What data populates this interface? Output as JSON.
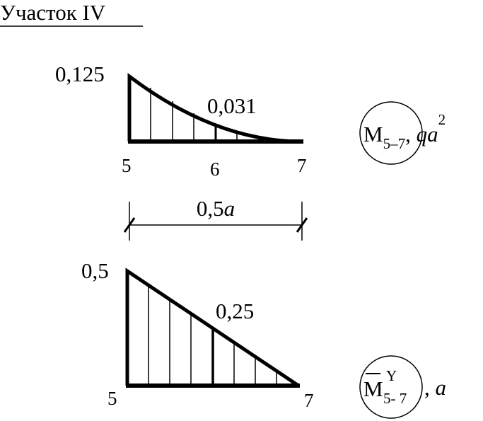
{
  "header": {
    "title": "Участок IV"
  },
  "diagrams": [
    {
      "values": [
        "0,125",
        "0,031"
      ],
      "nodes": [
        "5",
        "6",
        "7"
      ],
      "label": {
        "symbol": "M",
        "subscript": "5–7",
        "separator": ", ",
        "units": "qa",
        "units_power": "2"
      }
    },
    {
      "values": [
        "0,5",
        "0,25"
      ],
      "nodes": [
        "5",
        "7"
      ],
      "label": {
        "symbol": "M",
        "superscript": "Y",
        "subscript": "5- 7",
        "separator": ", ",
        "units": "a"
      }
    }
  ],
  "dimension": {
    "number": "0,5",
    "symbol": "a"
  }
}
